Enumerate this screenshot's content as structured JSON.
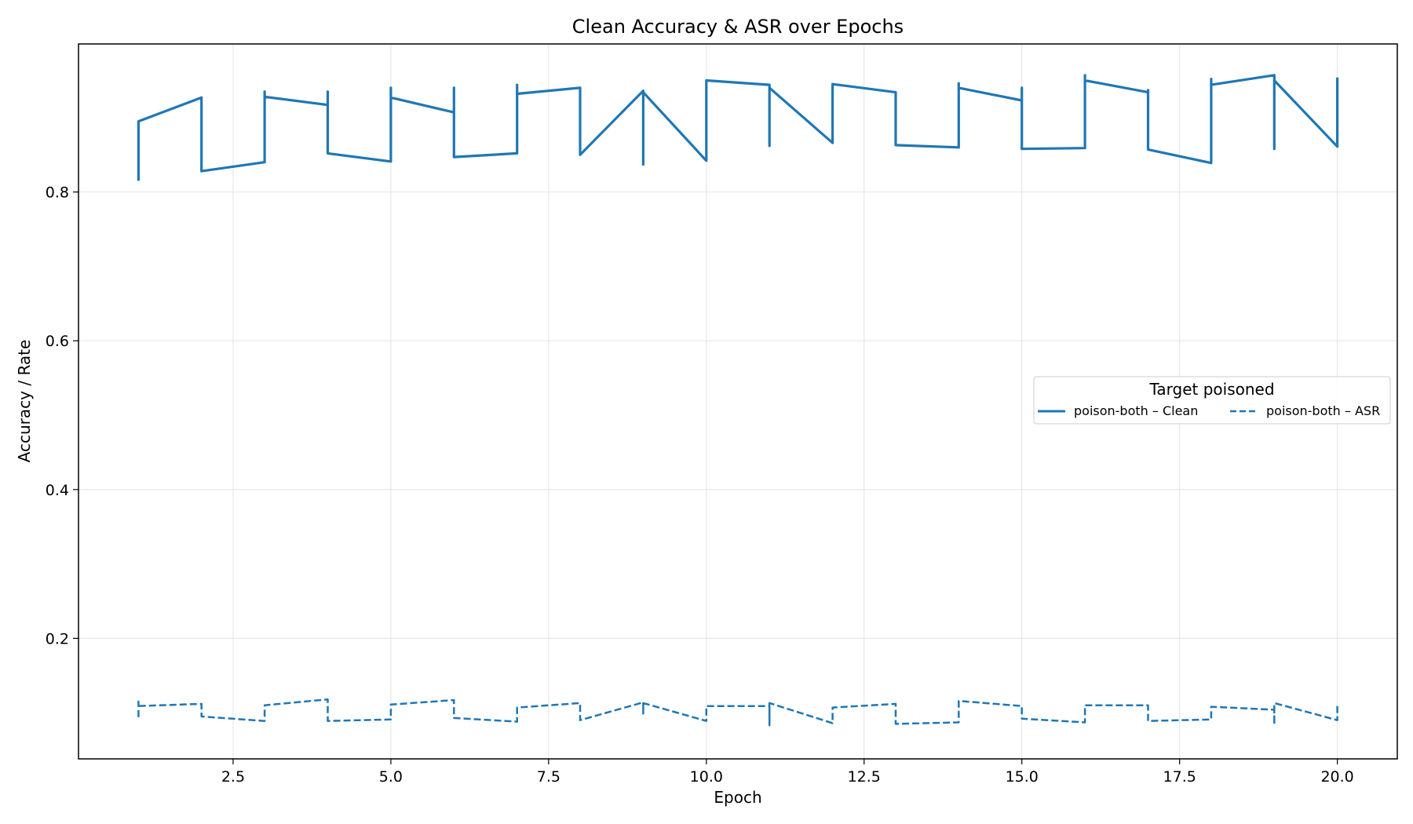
{
  "chart_data": {
    "type": "line",
    "title": "Clean Accuracy & ASR over Epochs",
    "xlabel": "Epoch",
    "ylabel": "Accuracy / Rate",
    "xlim": [
      0.05,
      20.95
    ],
    "ylim": [
      0.038,
      0.999
    ],
    "xticks": [
      2.5,
      5.0,
      7.5,
      10.0,
      12.5,
      15.0,
      17.5,
      20.0
    ],
    "xtick_labels": [
      "2.5",
      "5.0",
      "7.5",
      "10.0",
      "12.5",
      "15.0",
      "17.5",
      "20.0"
    ],
    "yticks": [
      0.2,
      0.4,
      0.6,
      0.8
    ],
    "ytick_labels": [
      "0.2",
      "0.4",
      "0.6",
      "0.8"
    ],
    "grid": true,
    "legend": {
      "title": "Target poisoned",
      "placement": "center-right",
      "entries": [
        "poison-both – Clean",
        "poison-both – ASR"
      ]
    },
    "series": [
      {
        "name": "poison-both – Clean",
        "style": "solid",
        "color": "#1f77b4",
        "points": [
          [
            1,
            0.815
          ],
          [
            1,
            0.895
          ],
          [
            2,
            0.927
          ],
          [
            2,
            0.828
          ],
          [
            3,
            0.84
          ],
          [
            3,
            0.935
          ],
          [
            3,
            0.928
          ],
          [
            4,
            0.917
          ],
          [
            4,
            0.935
          ],
          [
            4,
            0.852
          ],
          [
            5,
            0.841
          ],
          [
            5,
            0.94
          ],
          [
            5,
            0.927
          ],
          [
            6,
            0.907
          ],
          [
            6,
            0.94
          ],
          [
            6,
            0.847
          ],
          [
            7,
            0.852
          ],
          [
            7,
            0.944
          ],
          [
            7,
            0.932
          ],
          [
            8,
            0.94
          ],
          [
            8,
            0.85
          ],
          [
            9,
            0.936
          ],
          [
            9,
            0.837
          ],
          [
            9,
            0.934
          ],
          [
            10,
            0.842
          ],
          [
            10,
            0.95
          ],
          [
            11,
            0.944
          ],
          [
            11,
            0.862
          ],
          [
            11,
            0.94
          ],
          [
            12,
            0.866
          ],
          [
            12,
            0.945
          ],
          [
            13,
            0.934
          ],
          [
            13,
            0.863
          ],
          [
            14,
            0.86
          ],
          [
            14,
            0.946
          ],
          [
            14,
            0.94
          ],
          [
            15,
            0.923
          ],
          [
            15,
            0.94
          ],
          [
            15,
            0.858
          ],
          [
            16,
            0.859
          ],
          [
            16,
            0.957
          ],
          [
            16,
            0.95
          ],
          [
            17,
            0.934
          ],
          [
            17,
            0.937
          ],
          [
            17,
            0.857
          ],
          [
            18,
            0.839
          ],
          [
            18,
            0.952
          ],
          [
            18,
            0.944
          ],
          [
            19,
            0.957
          ],
          [
            19,
            0.858
          ],
          [
            19,
            0.95
          ],
          [
            20,
            0.861
          ],
          [
            20,
            0.954
          ]
        ]
      },
      {
        "name": "poison-both – ASR",
        "style": "dashed",
        "color": "#1f77b4",
        "points": [
          [
            1,
            0.094
          ],
          [
            1,
            0.115
          ],
          [
            1,
            0.109
          ],
          [
            2,
            0.112
          ],
          [
            2,
            0.095
          ],
          [
            3,
            0.089
          ],
          [
            3,
            0.11
          ],
          [
            4,
            0.118
          ],
          [
            4,
            0.089
          ],
          [
            5,
            0.091
          ],
          [
            5,
            0.111
          ],
          [
            6,
            0.117
          ],
          [
            6,
            0.093
          ],
          [
            7,
            0.088
          ],
          [
            7,
            0.107
          ],
          [
            8,
            0.113
          ],
          [
            8,
            0.09
          ],
          [
            9,
            0.114
          ],
          [
            9,
            0.099
          ],
          [
            9,
            0.113
          ],
          [
            10,
            0.089
          ],
          [
            10,
            0.109
          ],
          [
            11,
            0.109
          ],
          [
            11,
            0.083
          ],
          [
            11,
            0.113
          ],
          [
            12,
            0.086
          ],
          [
            12,
            0.107
          ],
          [
            13,
            0.112
          ],
          [
            13,
            0.085
          ],
          [
            14,
            0.087
          ],
          [
            14,
            0.116
          ],
          [
            15,
            0.109
          ],
          [
            15,
            0.092
          ],
          [
            16,
            0.087
          ],
          [
            16,
            0.11
          ],
          [
            17,
            0.11
          ],
          [
            17,
            0.089
          ],
          [
            18,
            0.091
          ],
          [
            18,
            0.108
          ],
          [
            19,
            0.104
          ],
          [
            19,
            0.084
          ],
          [
            19,
            0.113
          ],
          [
            20,
            0.09
          ],
          [
            20,
            0.109
          ]
        ]
      }
    ]
  }
}
